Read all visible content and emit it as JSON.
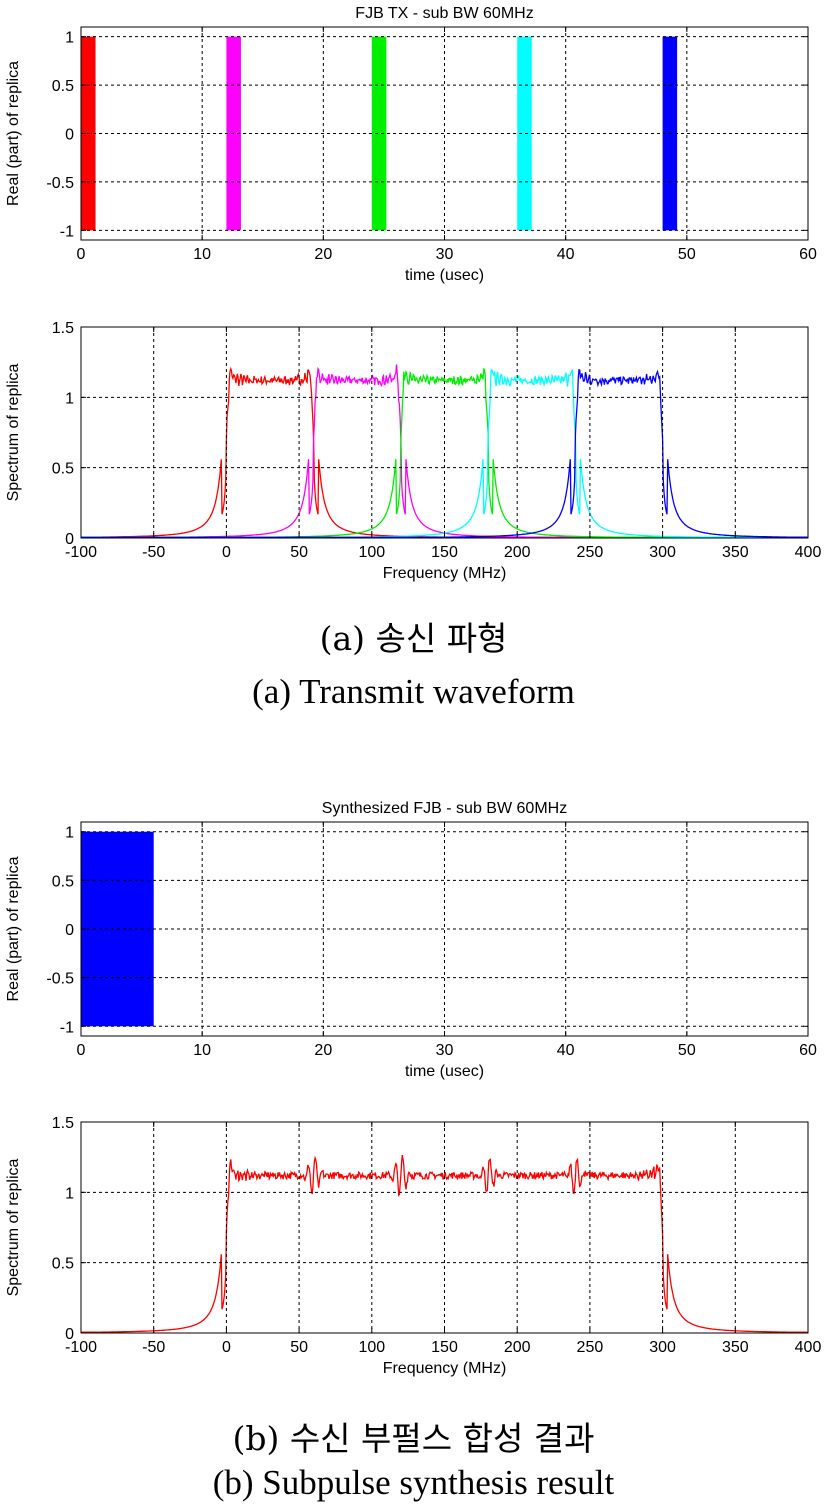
{
  "chart_data": [
    {
      "type": "bar",
      "title": "FJB TX -  sub BW 60MHz",
      "xlabel": "time (usec)",
      "ylabel": "Real (part) of replica",
      "xlim": [
        0,
        60
      ],
      "ylim": [
        -1.1,
        1.1
      ],
      "xticks": [
        "0",
        "10",
        "20",
        "30",
        "40",
        "50",
        "60"
      ],
      "yticks": [
        "-1",
        "-0.5",
        "0",
        "0.5",
        "1"
      ],
      "grid": true,
      "series": [
        {
          "name": "subpulse 1",
          "color": "#ff0000",
          "x_range": [
            0,
            1.2
          ],
          "y_range": [
            -1,
            1
          ]
        },
        {
          "name": "subpulse 2",
          "color": "#ff00ff",
          "x_range": [
            12,
            13.2
          ],
          "y_range": [
            -1,
            1
          ]
        },
        {
          "name": "subpulse 3",
          "color": "#00ee00",
          "x_range": [
            24,
            25.2
          ],
          "y_range": [
            -1,
            1
          ]
        },
        {
          "name": "subpulse 4",
          "color": "#00ffff",
          "x_range": [
            36,
            37.2
          ],
          "y_range": [
            -1,
            1
          ]
        },
        {
          "name": "subpulse 5",
          "color": "#0000ff",
          "x_range": [
            48,
            49.2
          ],
          "y_range": [
            -1,
            1
          ]
        }
      ]
    },
    {
      "type": "line",
      "title": "",
      "xlabel": "Frequency (MHz)",
      "ylabel": "Spectrum of replica",
      "xlim": [
        -100,
        400
      ],
      "ylim": [
        0,
        1.5
      ],
      "xticks": [
        "-100",
        "-50",
        "0",
        "50",
        "100",
        "150",
        "200",
        "250",
        "300",
        "350",
        "400"
      ],
      "yticks": [
        "0",
        "0.5",
        "1",
        "1.5"
      ],
      "grid": true,
      "series": [
        {
          "name": "band 1",
          "color": "#ff0000",
          "band_mhz": [
            0,
            60
          ],
          "passband_level": 1.12,
          "edge_peak": 1.3
        },
        {
          "name": "band 2",
          "color": "#ff00ff",
          "band_mhz": [
            60,
            120
          ],
          "passband_level": 1.12,
          "edge_peak": 1.3
        },
        {
          "name": "band 3",
          "color": "#00ee00",
          "band_mhz": [
            120,
            180
          ],
          "passband_level": 1.12,
          "edge_peak": 1.3
        },
        {
          "name": "band 4",
          "color": "#00ffff",
          "band_mhz": [
            180,
            240
          ],
          "passband_level": 1.12,
          "edge_peak": 1.3
        },
        {
          "name": "band 5",
          "color": "#0000ff",
          "band_mhz": [
            240,
            300
          ],
          "passband_level": 1.12,
          "edge_peak": 1.3
        }
      ]
    },
    {
      "type": "bar",
      "title": "Synthesized FJB - sub BW 60MHz",
      "xlabel": "time (usec)",
      "ylabel": "Real (part) of replica",
      "xlim": [
        0,
        60
      ],
      "ylim": [
        -1.1,
        1.1
      ],
      "xticks": [
        "0",
        "10",
        "20",
        "30",
        "40",
        "50",
        "60"
      ],
      "yticks": [
        "-1",
        "-0.5",
        "0",
        "0.5",
        "1"
      ],
      "grid": true,
      "series": [
        {
          "name": "synthesized pulse",
          "color": "#0000ff",
          "x_range": [
            0,
            6
          ],
          "y_range": [
            -1,
            1
          ]
        }
      ]
    },
    {
      "type": "line",
      "title": "",
      "xlabel": "Frequency (MHz)",
      "ylabel": "Spectrum of replica",
      "xlim": [
        -100,
        400
      ],
      "ylim": [
        0,
        1.5
      ],
      "xticks": [
        "-100",
        "-50",
        "0",
        "50",
        "100",
        "150",
        "200",
        "250",
        "300",
        "350",
        "400"
      ],
      "yticks": [
        "0",
        "0.5",
        "1",
        "1.5"
      ],
      "grid": true,
      "series": [
        {
          "name": "synthesized spectrum",
          "color": "#ff0000",
          "band_mhz": [
            0,
            300
          ],
          "passband_level": 1.12,
          "edge_peak": 1.3,
          "junction_dips_mhz": [
            60,
            120,
            180,
            240
          ]
        }
      ]
    }
  ],
  "captions": {
    "a_korean": "(a) 송신 파형",
    "a_english": "(a) Transmit waveform",
    "b_korean": "(b) 수신 부펄스 합성 결과",
    "b_english": "(b) Subpulse synthesis result"
  }
}
